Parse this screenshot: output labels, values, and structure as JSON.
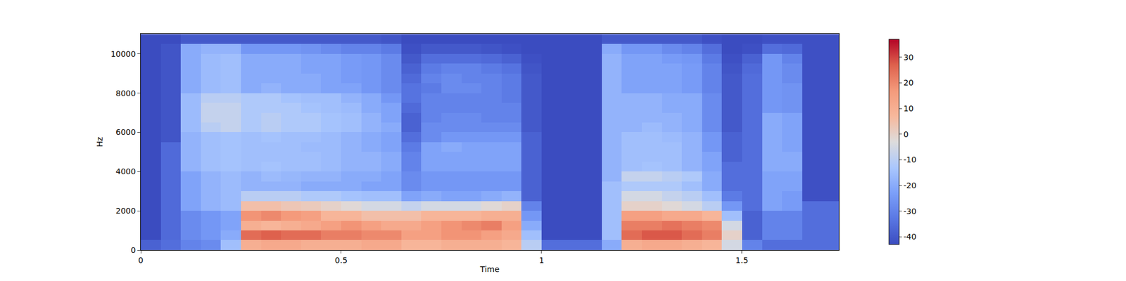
{
  "chart_data": {
    "type": "heatmap",
    "x_label": "Time",
    "y_label": "Hz",
    "xlim": [
      0,
      1.742
    ],
    "xticks": [
      0,
      0.5,
      1,
      1.5
    ],
    "ylim": [
      0,
      11025
    ],
    "yticks": [
      0,
      2000,
      4000,
      6000,
      8000,
      10000
    ],
    "zlim": [
      -43,
      37
    ],
    "zticks": [
      -40,
      -30,
      -20,
      -10,
      0,
      10,
      20,
      30
    ],
    "x": [
      0.025,
      0.075,
      0.125,
      0.175,
      0.225,
      0.275,
      0.325,
      0.375,
      0.425,
      0.475,
      0.525,
      0.575,
      0.625,
      0.675,
      0.725,
      0.775,
      0.825,
      0.875,
      0.925,
      0.975,
      1.025,
      1.075,
      1.125,
      1.175,
      1.225,
      1.275,
      1.325,
      1.375,
      1.425,
      1.475,
      1.525,
      1.575,
      1.625,
      1.675,
      1.725
    ],
    "y": [
      250,
      750,
      1250,
      1750,
      2250,
      2750,
      3250,
      3750,
      4250,
      4750,
      5250,
      5750,
      6250,
      6750,
      7250,
      7750,
      8250,
      8750,
      9250,
      9750,
      10250,
      10750
    ],
    "z": [
      [
        -38,
        -43,
        -43,
        -43,
        -43,
        -43,
        -43,
        -43,
        -43,
        -43,
        -43,
        -43,
        -43,
        -43,
        -43,
        -43,
        -43,
        -43,
        -43,
        -43,
        -43,
        -43
      ],
      [
        -35,
        -36,
        -36,
        -36,
        -36,
        -36,
        -36,
        -36,
        -36,
        -36,
        -36,
        -41,
        -41,
        -41,
        -41,
        -41,
        -41,
        -41,
        -41,
        -41,
        -41,
        -43
      ],
      [
        -30,
        -28,
        -28,
        -28,
        -22,
        -22,
        -22,
        -22,
        -18,
        -18,
        -18,
        -18,
        -16,
        -16,
        -16,
        -16,
        -20,
        -20,
        -20,
        -20,
        -20,
        -40
      ],
      [
        -28,
        -25,
        -25,
        -25,
        -18,
        -18,
        -18,
        -18,
        -15,
        -15,
        -15,
        -15,
        -10,
        -8,
        -8,
        -10,
        -16,
        -16,
        -16,
        -16,
        -18,
        -40
      ],
      [
        -15,
        -20,
        -22,
        -22,
        -16,
        -16,
        -16,
        -16,
        -14,
        -14,
        -14,
        -14,
        -8,
        -8,
        -8,
        -10,
        -15,
        -15,
        -15,
        -15,
        -18,
        -40
      ],
      [
        10,
        25,
        10,
        18,
        5,
        -10,
        -18,
        -18,
        -15,
        -15,
        -15,
        -15,
        -12,
        -12,
        -12,
        -12,
        -20,
        -20,
        -20,
        -20,
        -25,
        -40
      ],
      [
        12,
        27,
        8,
        20,
        5,
        -10,
        -18,
        -16,
        -14,
        -15,
        -15,
        -14,
        -10,
        -10,
        -12,
        -12,
        -18,
        -20,
        -20,
        -20,
        -25,
        -40
      ],
      [
        12,
        25,
        10,
        17,
        3,
        -10,
        -18,
        -17,
        -15,
        -15,
        -15,
        -15,
        -12,
        -12,
        -12,
        -14,
        -20,
        -20,
        -20,
        -20,
        -25,
        -40
      ],
      [
        10,
        25,
        12,
        15,
        2,
        -12,
        -20,
        -18,
        -15,
        -15,
        -16,
        -15,
        -12,
        -12,
        -14,
        -15,
        -20,
        -20,
        -22,
        -22,
        -26,
        -40
      ],
      [
        10,
        22,
        15,
        8,
        0,
        -12,
        -20,
        -18,
        -16,
        -16,
        -16,
        -16,
        -14,
        -14,
        -15,
        -15,
        -22,
        -22,
        -22,
        -22,
        -28,
        -40
      ],
      [
        10,
        22,
        18,
        8,
        -2,
        -14,
        -20,
        -20,
        -18,
        -18,
        -18,
        -18,
        -15,
        -15,
        -16,
        -18,
        -22,
        -24,
        -24,
        -24,
        -30,
        -40
      ],
      [
        12,
        20,
        15,
        5,
        -5,
        -15,
        -22,
        -20,
        -18,
        -18,
        -20,
        -20,
        -18,
        -18,
        -20,
        -20,
        -25,
        -25,
        -25,
        -25,
        -30,
        -40
      ],
      [
        12,
        20,
        12,
        5,
        -5,
        -15,
        -22,
        -22,
        -20,
        -20,
        -22,
        -22,
        -20,
        -22,
        -22,
        -25,
        -28,
        -28,
        -28,
        -28,
        -32,
        -41
      ],
      [
        8,
        15,
        12,
        5,
        -8,
        -22,
        -28,
        -28,
        -30,
        -30,
        -32,
        -35,
        -38,
        -38,
        -36,
        -34,
        -34,
        -36,
        -38,
        -40,
        -42,
        -43
      ],
      [
        8,
        15,
        15,
        8,
        -5,
        -20,
        -25,
        -25,
        -22,
        -22,
        -22,
        -28,
        -28,
        -30,
        -30,
        -30,
        -32,
        -30,
        -32,
        -35,
        -40,
        -43
      ],
      [
        10,
        18,
        18,
        8,
        -5,
        -22,
        -25,
        -25,
        -22,
        -22,
        -20,
        -25,
        -28,
        -28,
        -30,
        -30,
        -28,
        -28,
        -30,
        -35,
        -40,
        -43
      ],
      [
        10,
        18,
        20,
        8,
        -5,
        -22,
        -25,
        -25,
        -22,
        -22,
        -22,
        -25,
        -28,
        -28,
        -30,
        -30,
        -28,
        -30,
        -30,
        -35,
        -40,
        -43
      ],
      [
        10,
        15,
        22,
        10,
        -2,
        -20,
        -25,
        -25,
        -22,
        -22,
        -22,
        -25,
        -28,
        -30,
        -30,
        -30,
        -30,
        -30,
        -32,
        -36,
        -41,
        -43
      ],
      [
        8,
        12,
        15,
        10,
        0,
        -18,
        -25,
        -25,
        -22,
        -22,
        -22,
        -25,
        -28,
        -30,
        -30,
        -32,
        -32,
        -32,
        -34,
        -38,
        -42,
        -43
      ],
      [
        -10,
        -15,
        -20,
        -25,
        -30,
        -38,
        -38,
        -38,
        -38,
        -38,
        -38,
        -38,
        -40,
        -40,
        -40,
        -40,
        -40,
        -40,
        -41,
        -42,
        -43,
        -43
      ],
      [
        -35,
        -43,
        -43,
        -43,
        -43,
        -43,
        -43,
        -43,
        -43,
        -43,
        -43,
        -43,
        -43,
        -43,
        -43,
        -43,
        -43,
        -43,
        -43,
        -43,
        -43,
        -43
      ],
      [
        -35,
        -43,
        -43,
        -43,
        -43,
        -43,
        -43,
        -43,
        -43,
        -43,
        -43,
        -43,
        -43,
        -43,
        -43,
        -43,
        -43,
        -43,
        -43,
        -43,
        -43,
        -43
      ],
      [
        -35,
        -43,
        -43,
        -43,
        -43,
        -43,
        -43,
        -43,
        -43,
        -43,
        -43,
        -43,
        -43,
        -43,
        -43,
        -43,
        -43,
        -43,
        -43,
        -43,
        -43,
        -43
      ],
      [
        -20,
        -15,
        -15,
        -15,
        -15,
        -15,
        -15,
        -18,
        -18,
        -18,
        -18,
        -18,
        -18,
        -18,
        -18,
        -18,
        -18,
        -18,
        -18,
        -18,
        -20,
        -40
      ],
      [
        10,
        25,
        22,
        15,
        0,
        -5,
        -12,
        -8,
        -15,
        -15,
        -15,
        -15,
        -18,
        -18,
        -18,
        -18,
        -22,
        -22,
        -22,
        -22,
        -25,
        -40
      ],
      [
        12,
        28,
        22,
        15,
        0,
        -5,
        -12,
        -8,
        -14,
        -15,
        -15,
        -15,
        -16,
        -18,
        -18,
        -18,
        -22,
        -22,
        -22,
        -22,
        -25,
        -40
      ],
      [
        12,
        28,
        24,
        12,
        -2,
        -8,
        -12,
        -10,
        -15,
        -15,
        -15,
        -16,
        -18,
        -18,
        -20,
        -20,
        -22,
        -22,
        -22,
        -24,
        -28,
        -40
      ],
      [
        10,
        25,
        22,
        12,
        -5,
        -10,
        -15,
        -12,
        -18,
        -18,
        -18,
        -18,
        -20,
        -20,
        -20,
        -20,
        -24,
        -24,
        -24,
        -25,
        -30,
        -40
      ],
      [
        8,
        22,
        20,
        8,
        -10,
        -15,
        -20,
        -20,
        -22,
        -22,
        -25,
        -25,
        -28,
        -28,
        -28,
        -28,
        -30,
        -30,
        -30,
        -32,
        -35,
        -42
      ],
      [
        -5,
        0,
        -5,
        -15,
        -25,
        -32,
        -35,
        -35,
        -35,
        -38,
        -38,
        -38,
        -40,
        -40,
        -40,
        -40,
        -40,
        -40,
        -41,
        -42,
        -43,
        -43
      ],
      [
        -30,
        -38,
        -38,
        -38,
        -35,
        -35,
        -35,
        -35,
        -35,
        -35,
        -35,
        -35,
        -35,
        -35,
        -35,
        -35,
        -35,
        -35,
        -36,
        -38,
        -42,
        -43
      ],
      [
        -35,
        -30,
        -30,
        -30,
        -22,
        -22,
        -22,
        -22,
        -20,
        -20,
        -20,
        -20,
        -20,
        -20,
        -25,
        -25,
        -25,
        -25,
        -25,
        -25,
        -35,
        -42
      ],
      [
        -35,
        -30,
        -30,
        -30,
        -24,
        -24,
        -22,
        -22,
        -20,
        -20,
        -22,
        -22,
        -22,
        -22,
        -26,
        -26,
        -26,
        -28,
        -28,
        -30,
        -36,
        -42
      ],
      [
        -35,
        -35,
        -35,
        -35,
        -35,
        -42,
        -42,
        -42,
        -42,
        -42,
        -42,
        -42,
        -42,
        -42,
        -42,
        -42,
        -42,
        -42,
        -42,
        -42,
        -42,
        -42
      ],
      [
        -35,
        -35,
        -35,
        -35,
        -35,
        -42,
        -42,
        -42,
        -42,
        -42,
        -42,
        -42,
        -42,
        -42,
        -42,
        -42,
        -42,
        -42,
        -42,
        -42,
        -42,
        -42
      ]
    ]
  }
}
